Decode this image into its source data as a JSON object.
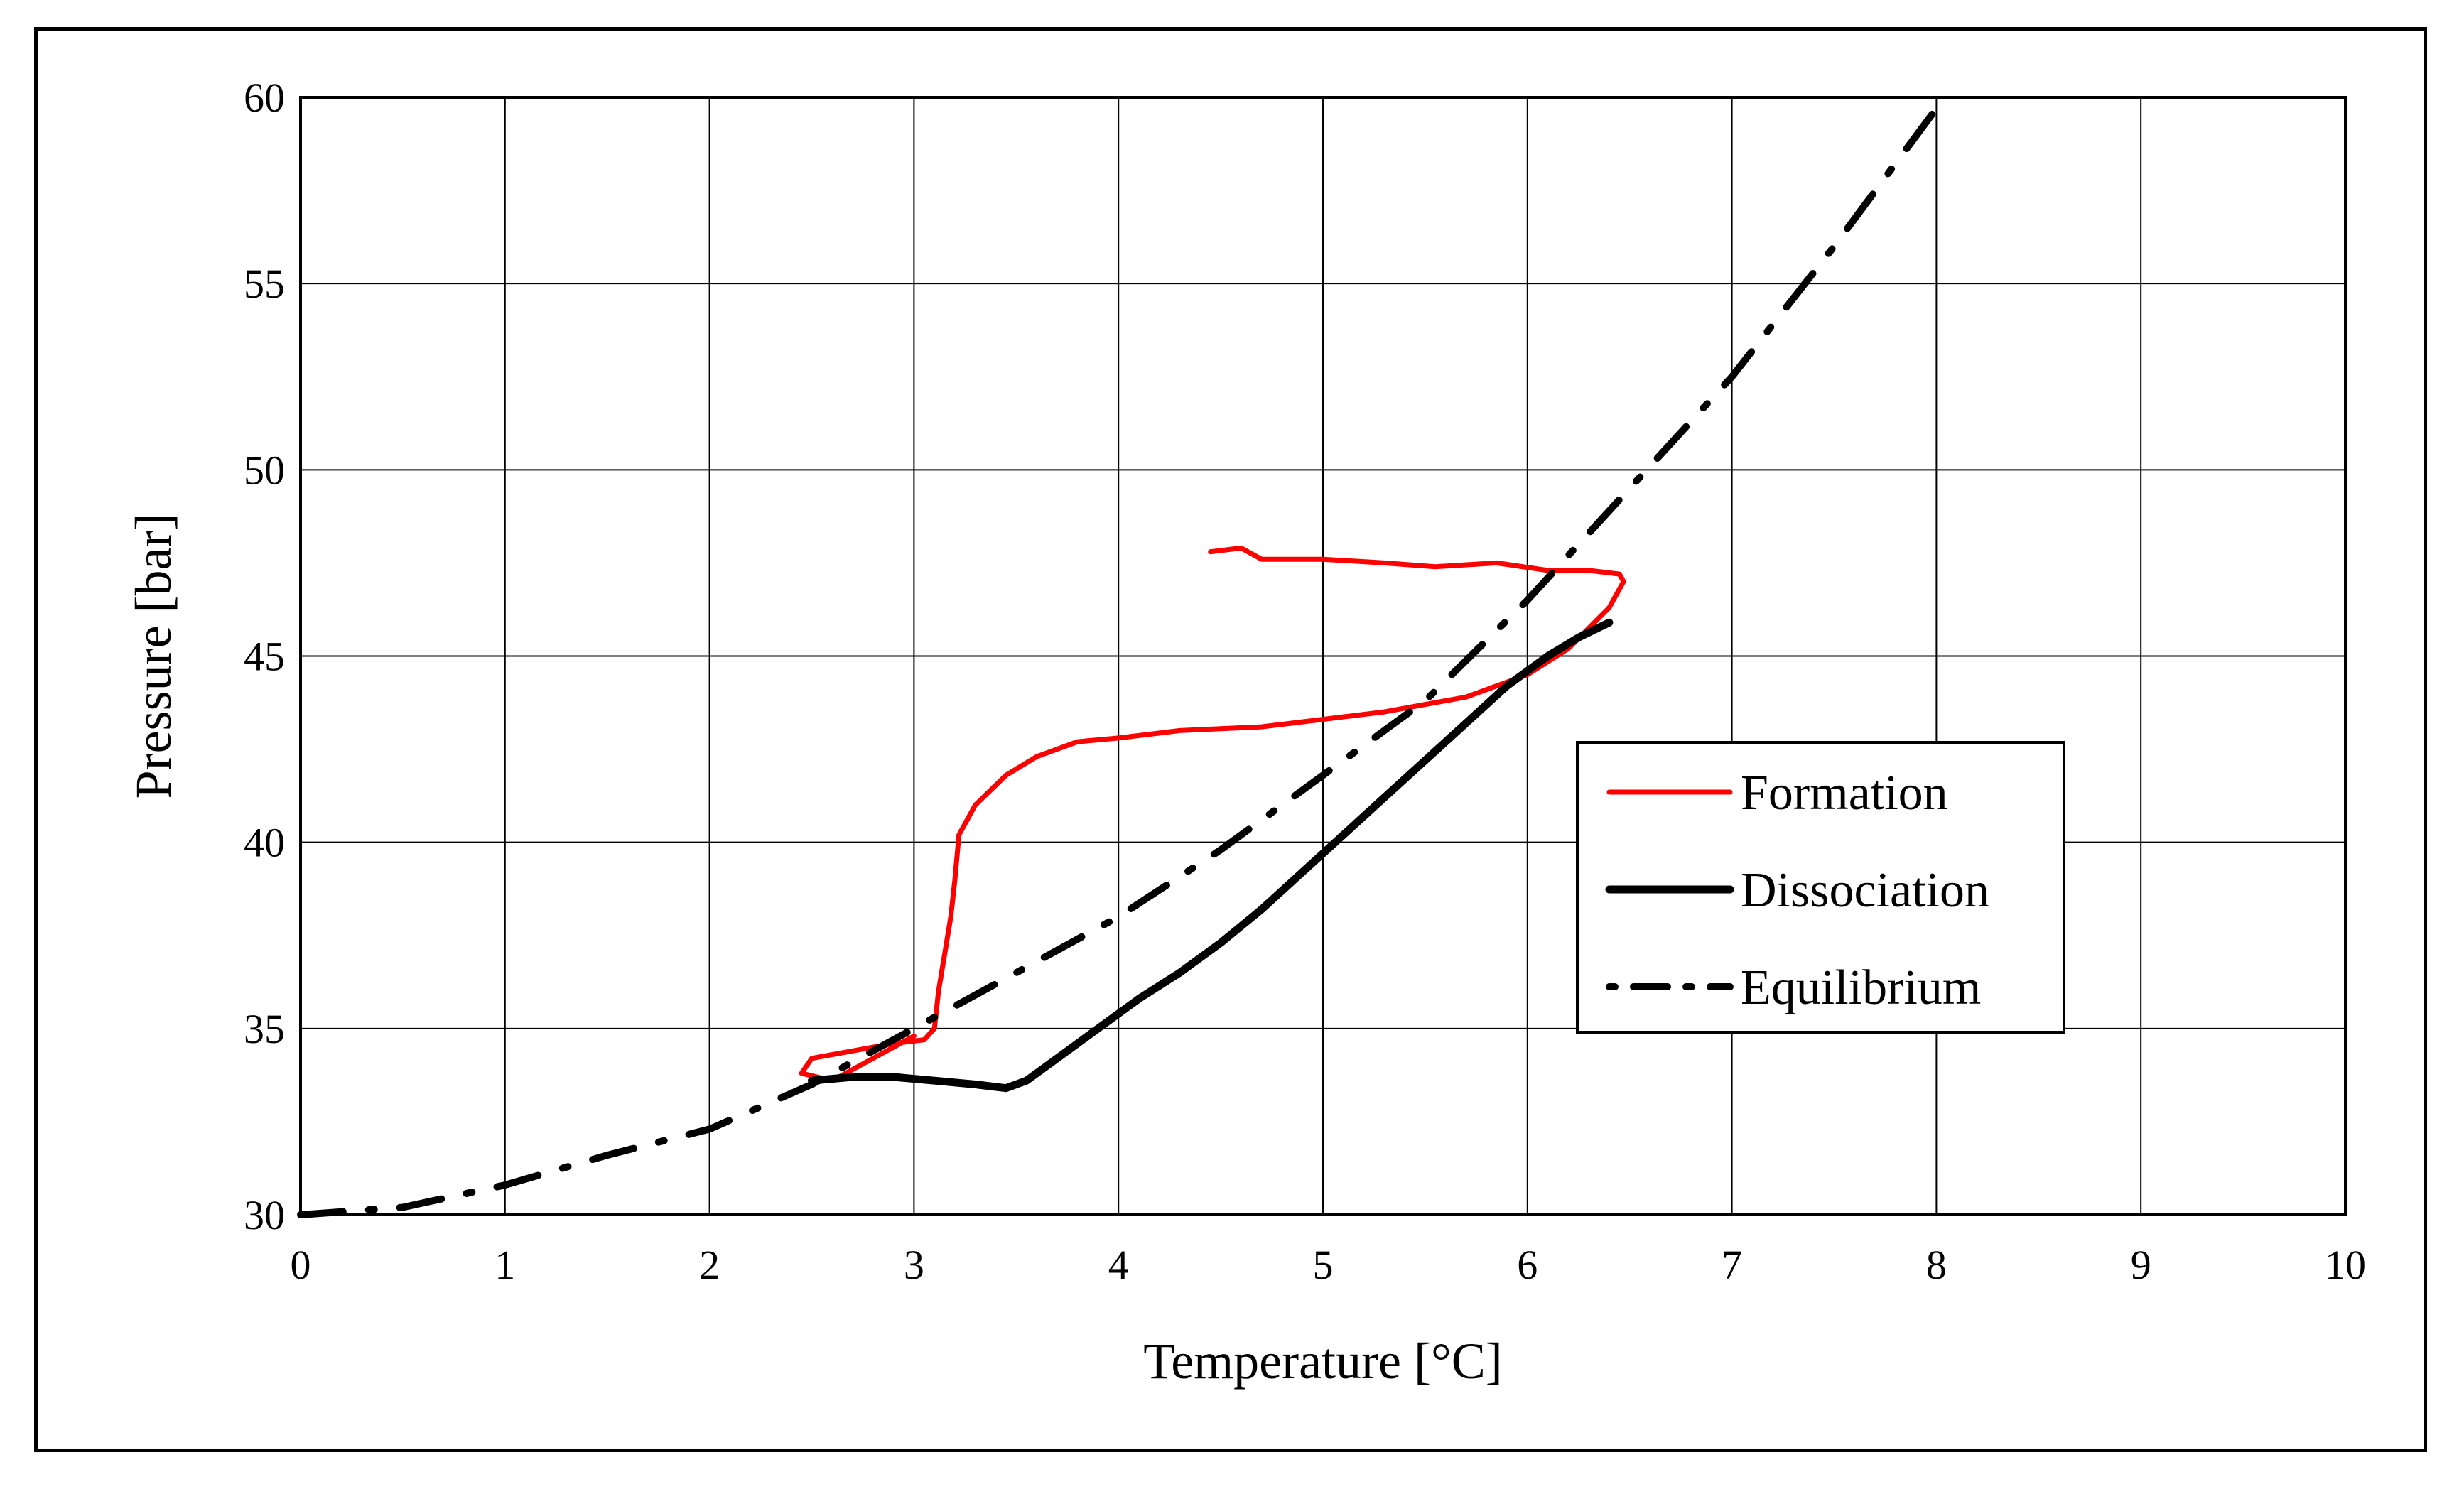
{
  "chart_data": {
    "type": "line",
    "title": "",
    "xlabel": "Temperature [°C]",
    "ylabel": "Pressure [bar]",
    "xlim": [
      0,
      10
    ],
    "ylim": [
      30,
      60
    ],
    "x_ticks": [
      0,
      1,
      2,
      3,
      4,
      5,
      6,
      7,
      8,
      9,
      10
    ],
    "y_ticks": [
      30,
      35,
      40,
      45,
      50,
      55,
      60
    ],
    "grid": true,
    "legend_position": "right",
    "series": [
      {
        "name": "Formation",
        "color": "#ff0000",
        "style": "solid",
        "x": [
          4.45,
          4.6,
          4.7,
          5.0,
          5.3,
          5.55,
          5.85,
          6.1,
          6.3,
          6.45,
          6.47,
          6.4,
          6.2,
          6.0,
          5.7,
          5.3,
          5.0,
          4.7,
          4.3,
          4.0,
          3.8,
          3.6,
          3.45,
          3.3,
          3.22,
          3.2,
          3.18,
          3.15,
          3.12,
          3.1,
          3.05,
          2.9,
          2.7,
          2.5,
          2.45,
          2.6,
          2.8,
          3.0
        ],
        "y": [
          47.8,
          47.9,
          47.6,
          47.6,
          47.5,
          47.4,
          47.5,
          47.3,
          47.3,
          47.2,
          47.0,
          46.3,
          45.2,
          44.5,
          43.9,
          43.5,
          43.3,
          43.1,
          43.0,
          42.8,
          42.7,
          42.3,
          41.8,
          41.0,
          40.2,
          39.0,
          38.0,
          37.0,
          36.0,
          35.0,
          34.7,
          34.6,
          34.4,
          34.2,
          33.8,
          33.6,
          34.2,
          34.8
        ]
      },
      {
        "name": "Dissociation",
        "color": "#000000",
        "style": "solid",
        "x": [
          2.5,
          2.7,
          2.9,
          3.1,
          3.3,
          3.45,
          3.55,
          3.7,
          3.9,
          4.1,
          4.3,
          4.5,
          4.7,
          4.9,
          5.1,
          5.3,
          5.5,
          5.7,
          5.9,
          6.1,
          6.25,
          6.4
        ],
        "y": [
          33.6,
          33.7,
          33.7,
          33.6,
          33.5,
          33.4,
          33.6,
          34.2,
          35.0,
          35.8,
          36.5,
          37.3,
          38.2,
          39.2,
          40.2,
          41.2,
          42.2,
          43.2,
          44.2,
          45.0,
          45.5,
          45.9
        ]
      },
      {
        "name": "Equilibrium",
        "color": "#000000",
        "style": "dash-dot",
        "x": [
          0.0,
          0.5,
          1.0,
          1.5,
          2.0,
          2.5,
          3.0,
          3.5,
          4.0,
          4.5,
          5.0,
          5.5,
          6.0,
          6.5,
          7.0,
          7.5,
          8.0
        ],
        "y": [
          30.0,
          30.2,
          30.8,
          31.6,
          32.3,
          33.5,
          35.0,
          36.5,
          38.0,
          39.8,
          41.8,
          43.8,
          46.5,
          49.5,
          52.5,
          56.0,
          59.7
        ]
      }
    ]
  }
}
